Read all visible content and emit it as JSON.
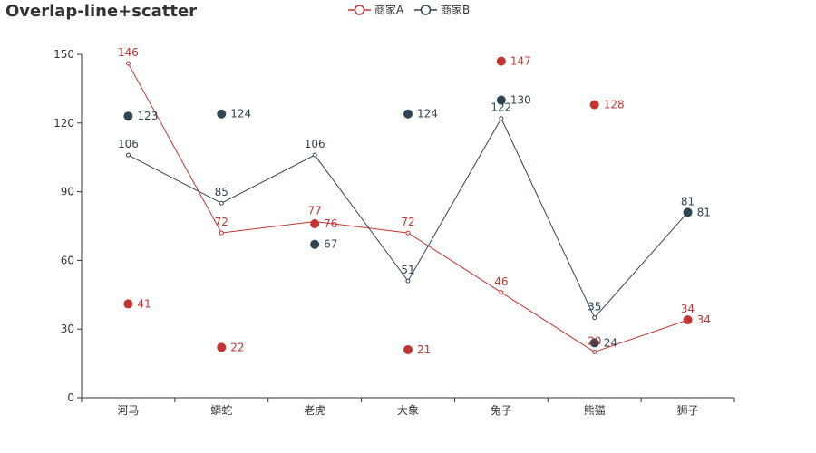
{
  "chart_data": {
    "type": "line+scatter",
    "title": "Overlap-line+scatter",
    "categories": [
      "河马",
      "蟒蛇",
      "老虎",
      "大象",
      "兔子",
      "熊猫",
      "狮子"
    ],
    "ylim": [
      0,
      150
    ],
    "yticks": [
      0,
      30,
      60,
      90,
      120,
      150
    ],
    "line_series": [
      {
        "name": "商家A",
        "color": "#c23531",
        "values": [
          146,
          72,
          77,
          72,
          46,
          20,
          34
        ]
      },
      {
        "name": "商家B",
        "color": "#2f4554",
        "values": [
          106,
          85,
          106,
          51,
          122,
          35,
          81
        ]
      }
    ],
    "scatter_series": [
      {
        "name": "商家A",
        "color": "#c23531",
        "values": [
          41,
          22,
          76,
          21,
          147,
          128,
          34
        ]
      },
      {
        "name": "商家B",
        "color": "#2f4554",
        "values": [
          123,
          124,
          67,
          124,
          130,
          24,
          81
        ]
      }
    ],
    "legend": [
      {
        "name": "商家A",
        "color": "#c23531"
      },
      {
        "name": "商家B",
        "color": "#2f4554"
      }
    ]
  }
}
